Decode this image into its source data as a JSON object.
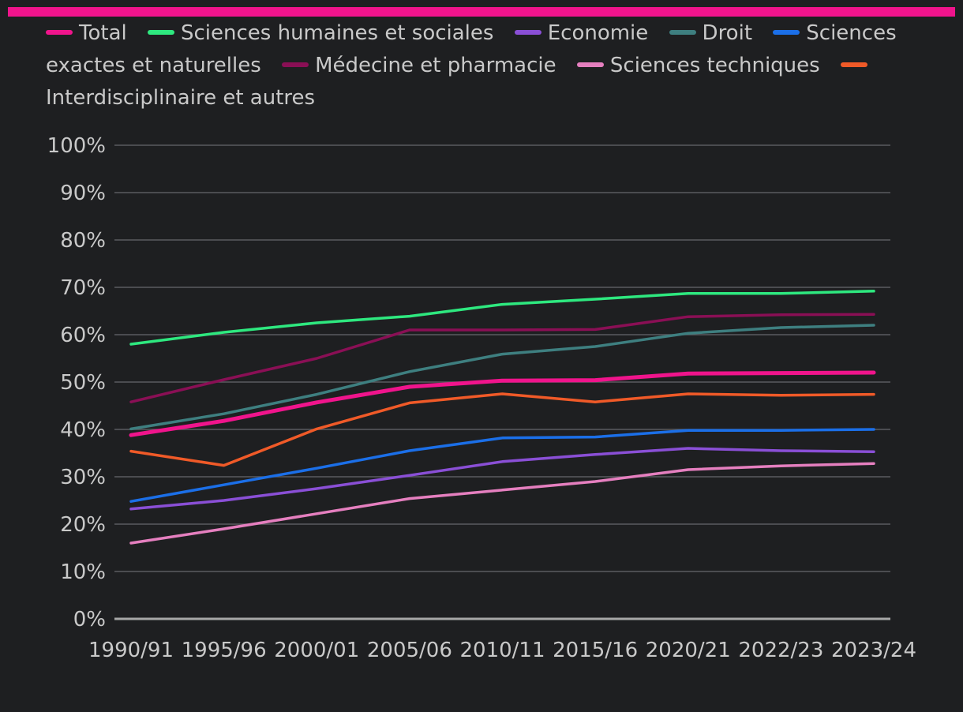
{
  "colors": {
    "background": "#1e1f21",
    "top_bar": "#f0148c",
    "grid": "#5a5c60",
    "baseline": "#a7a7a7",
    "text": "#c9c9c9"
  },
  "chart_data": {
    "type": "line",
    "title": "",
    "xlabel": "",
    "ylabel": "",
    "ylim": [
      0,
      100
    ],
    "yticks": [
      0,
      10,
      20,
      30,
      40,
      50,
      60,
      70,
      80,
      90,
      100
    ],
    "ytick_suffix": "%",
    "grid": true,
    "legend_position": "top",
    "categories": [
      "1990/91",
      "1995/96",
      "2000/01",
      "2005/06",
      "2010/11",
      "2015/16",
      "2020/21",
      "2022/23",
      "2023/24"
    ],
    "series": [
      {
        "name": "Total",
        "color": "#f0148c",
        "values": [
          38.8,
          41.8,
          45.7,
          49.0,
          50.3,
          50.4,
          51.8,
          51.9,
          52.0
        ]
      },
      {
        "name": "Sciences humaines et sociales",
        "color": "#2ee87f",
        "values": [
          58.0,
          60.5,
          62.5,
          63.9,
          66.4,
          67.5,
          68.7,
          68.7,
          69.2
        ]
      },
      {
        "name": "Economie",
        "color": "#8a4fd6",
        "values": [
          23.2,
          25.0,
          27.5,
          30.3,
          33.2,
          34.7,
          36.0,
          35.5,
          35.3
        ]
      },
      {
        "name": "Droit",
        "color": "#3e7f80",
        "values": [
          40.1,
          43.3,
          47.4,
          52.2,
          55.9,
          57.5,
          60.3,
          61.5,
          62.0
        ]
      },
      {
        "name": "Sciences exactes et naturelles",
        "color": "#1b6fe8",
        "values": [
          24.8,
          28.3,
          31.8,
          35.5,
          38.2,
          38.4,
          39.8,
          39.8,
          40.0
        ]
      },
      {
        "name": "Médecine et pharmacie",
        "color": "#8a0f55",
        "values": [
          45.8,
          50.5,
          55.0,
          61.0,
          61.0,
          61.1,
          63.8,
          64.2,
          64.3
        ]
      },
      {
        "name": "Sciences techniques",
        "color": "#e57fbf",
        "values": [
          16.0,
          19.0,
          22.2,
          25.4,
          27.2,
          29.0,
          31.5,
          32.3,
          32.8
        ]
      },
      {
        "name": "Interdisciplinaire et autres",
        "color": "#f05a28",
        "values": [
          35.4,
          32.4,
          40.1,
          45.6,
          47.5,
          45.8,
          47.5,
          47.2,
          47.4
        ]
      }
    ]
  }
}
